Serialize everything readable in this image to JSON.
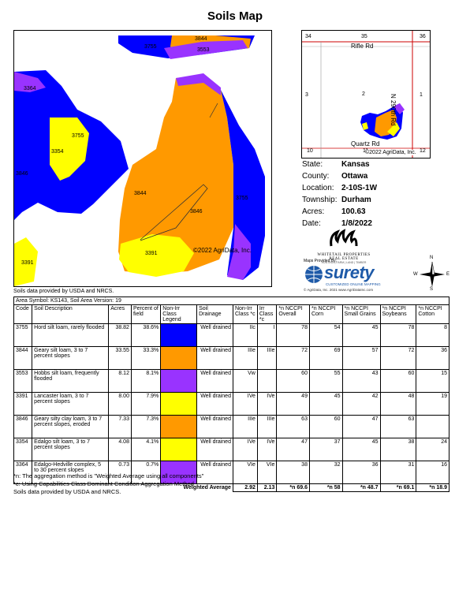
{
  "title": "Soils Map",
  "main_map": {
    "labels": [
      "3844",
      "3755",
      "3553",
      "3364",
      "3755",
      "3354",
      "3846",
      "3844",
      "3846",
      "3755",
      "3391",
      "3391"
    ],
    "copyright": "©2022 AgriData, Inc."
  },
  "inset_map": {
    "section_numbers": [
      "34",
      "35",
      "36",
      "3",
      "2",
      "1",
      "10",
      "11",
      "12"
    ],
    "roads": [
      "Rifle Rd",
      "N 290th Rd",
      "Quartz Rd"
    ],
    "copyright": "©2022 AgriData, Inc."
  },
  "info": [
    {
      "k": "State:",
      "v": "Kansas"
    },
    {
      "k": "County:",
      "v": "Ottawa"
    },
    {
      "k": "Location:",
      "v": "2-10S-1W"
    },
    {
      "k": "Township:",
      "v": "Durham"
    },
    {
      "k": "Acres:",
      "v": "100.63"
    },
    {
      "k": "Date:",
      "v": "1/8/2022"
    }
  ],
  "logos": {
    "wp_name": "WHITETAIL PROPERTIES REAL ESTATE",
    "wp_tag": "HUNTING | FARM | LAND | TIMBER",
    "maps_provided_by": "Maps Provided By:",
    "surety": "surety",
    "surety_sub": "CUSTOMIZED ONLINE MAPPING",
    "surety_copy": "© AgriData, Inc. 2021    www.AgriDataInc.com"
  },
  "compass": {
    "n": "N",
    "s": "S",
    "e": "E",
    "w": "W"
  },
  "source_note": "Soils data provided by USDA and NRCS.",
  "table": {
    "area_symbol": "Area Symbol: KS143, Soil Area Version: 19",
    "headers": [
      "Code",
      "Soil Description",
      "Acres",
      "Percent of field",
      "Non-Irr Class Legend",
      "Soil Drainage",
      "Non-Irr Class *c",
      "Irr Class *c",
      "*n NCCPI Overall",
      "*n NCCPI Corn",
      "*n NCCPI Small Grains",
      "*n NCCPI Soybeans",
      "*n NCCPI Cotton"
    ],
    "rows": [
      {
        "code": "3755",
        "desc": "Hord silt loam, rarely flooded",
        "acres": "38.82",
        "pct": "38.6%",
        "color": "#0000ff",
        "drain": "Well drained",
        "nonirr": "IIc",
        "irr": "I",
        "overall": "78",
        "corn": "54",
        "small": "45",
        "soy": "78",
        "cotton": "8"
      },
      {
        "code": "3844",
        "desc": "Geary silt loam, 3 to 7 percent slopes",
        "acres": "33.55",
        "pct": "33.3%",
        "color": "#ff9900",
        "drain": "Well drained",
        "nonirr": "IIIe",
        "irr": "IIIe",
        "overall": "72",
        "corn": "69",
        "small": "57",
        "soy": "72",
        "cotton": "36"
      },
      {
        "code": "3553",
        "desc": "Hobbs silt loam, frequently flooded",
        "acres": "8.12",
        "pct": "8.1%",
        "color": "#9933ff",
        "drain": "Well drained",
        "nonirr": "Vw",
        "irr": "",
        "overall": "60",
        "corn": "55",
        "small": "43",
        "soy": "60",
        "cotton": "15"
      },
      {
        "code": "3391",
        "desc": "Lancaster loam, 3 to 7 percent slopes",
        "acres": "8.00",
        "pct": "7.9%",
        "color": "#ffff00",
        "drain": "Well drained",
        "nonirr": "IVe",
        "irr": "IVe",
        "overall": "49",
        "corn": "45",
        "small": "42",
        "soy": "48",
        "cotton": "19"
      },
      {
        "code": "3846",
        "desc": "Geary silty clay loam, 3 to 7 percent slopes, eroded",
        "acres": "7.33",
        "pct": "7.3%",
        "color": "#ff9900",
        "drain": "Well drained",
        "nonirr": "IIIe",
        "irr": "IIIe",
        "overall": "63",
        "corn": "60",
        "small": "47",
        "soy": "63",
        "cotton": ""
      },
      {
        "code": "3354",
        "desc": "Edalgo silt loam, 3 to 7 percent slopes",
        "acres": "4.08",
        "pct": "4.1%",
        "color": "#ffff00",
        "drain": "Well drained",
        "nonirr": "IVe",
        "irr": "IVe",
        "overall": "47",
        "corn": "37",
        "small": "45",
        "soy": "38",
        "cotton": "24"
      },
      {
        "code": "3364",
        "desc": "Edalgo-Hedville complex, 5 to 30 percent slopes",
        "acres": "0.73",
        "pct": "0.7%",
        "color": "#9933ff",
        "drain": "Well drained",
        "nonirr": "VIe",
        "irr": "VIe",
        "overall": "38",
        "corn": "32",
        "small": "36",
        "soy": "31",
        "cotton": "16"
      }
    ],
    "weighted": {
      "label": "Weighted Average",
      "nonirr": "2.92",
      "irr": "2.13",
      "overall": "*n 69.6",
      "corn": "*n 58",
      "small": "*n 48.7",
      "soy": "*n 69.1",
      "cotton": "*n 18.9"
    }
  },
  "footnotes": [
    "*n: The aggregation method is \"Weighted Average using all components\"",
    "*c: Using Capabilities Class Dominant Condition Aggregation Method",
    "Soils data provided by USDA and NRCS."
  ]
}
